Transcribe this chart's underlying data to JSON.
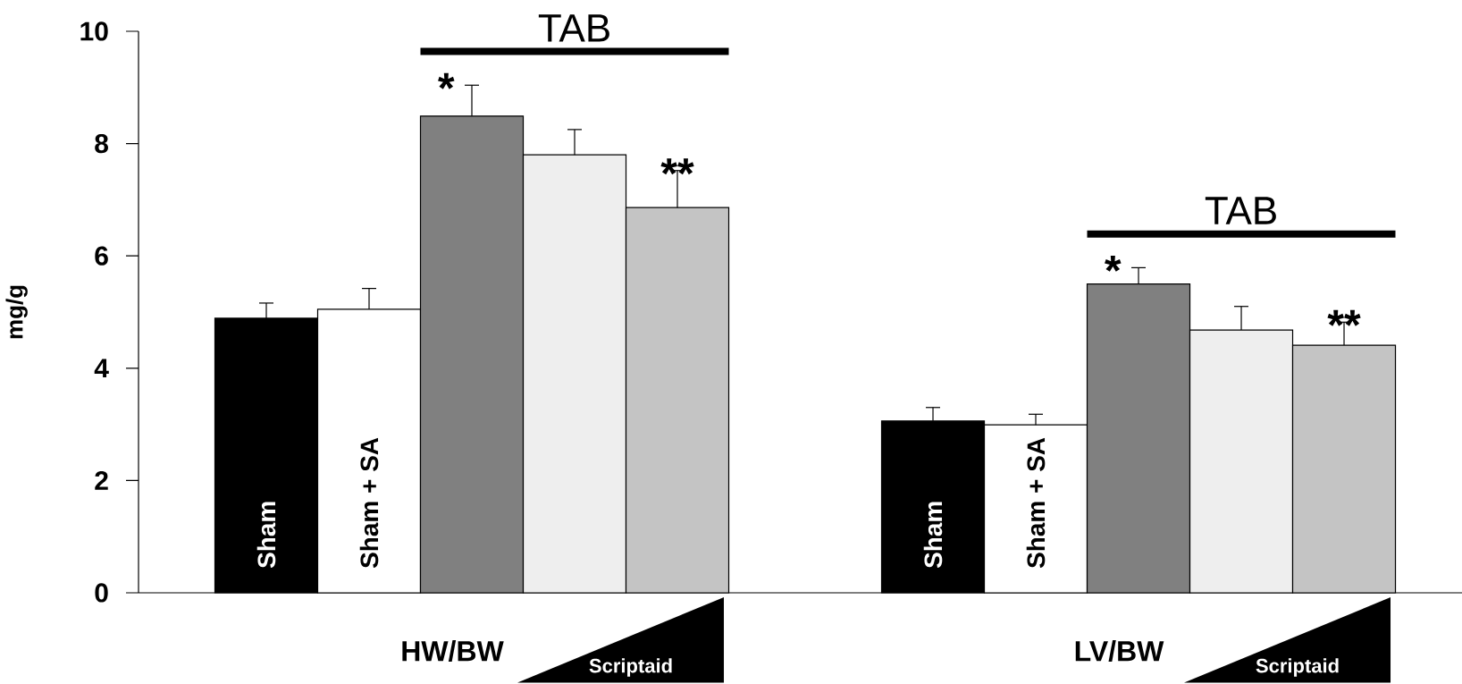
{
  "chart_data": {
    "type": "bar",
    "ylabel": "mg/g",
    "categories": [
      "HW/BW",
      "LV/BW"
    ],
    "series": [
      {
        "name": "Sham",
        "color": "#000000",
        "values": [
          4.89,
          3.06
        ],
        "errors": [
          0.27,
          0.24
        ]
      },
      {
        "name": "Sham + SA",
        "color": "#ffffff",
        "values": [
          5.05,
          2.99
        ],
        "errors": [
          0.37,
          0.19
        ]
      },
      {
        "color": "#808080",
        "values": [
          8.49,
          5.5
        ],
        "errors": [
          0.55,
          0.29
        ]
      },
      {
        "color": "#eeeeee",
        "values": [
          7.8,
          4.68
        ],
        "errors": [
          0.45,
          0.42
        ]
      },
      {
        "color": "#c4c4c4",
        "values": [
          6.86,
          4.41
        ],
        "errors": [
          0.66,
          0.41
        ]
      }
    ],
    "ylim": [
      0,
      10
    ],
    "yticks": [
      0,
      2,
      4,
      6,
      8,
      10
    ],
    "grid": false,
    "annotations": [
      "TAB",
      "*",
      "**",
      "Scriptaid",
      "TAB",
      "*",
      "**",
      "Scriptaid"
    ]
  }
}
